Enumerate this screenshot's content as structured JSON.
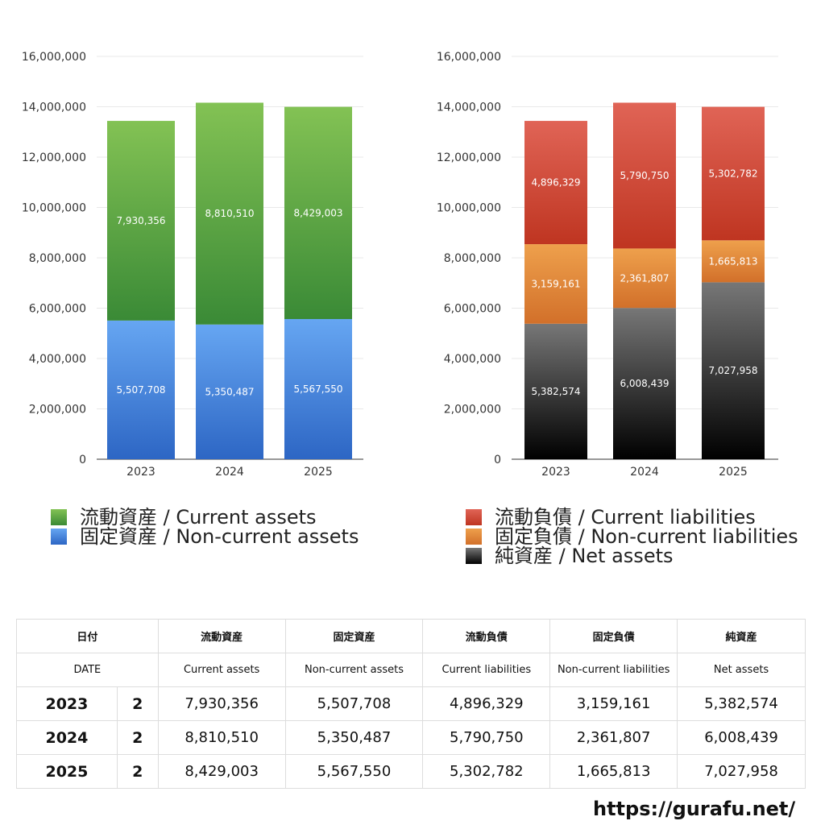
{
  "chart_data": [
    {
      "type": "bar",
      "stacked": true,
      "categories": [
        "2023",
        "2024",
        "2025"
      ],
      "y_ticks": [
        "16,000,000",
        "14,000,000",
        "12,000,000",
        "10,000,000",
        "8,000,000",
        "6,000,000",
        "4,000,000",
        "2,000,000",
        "0"
      ],
      "ylim": [
        0,
        16000000
      ],
      "grid": true,
      "series": [
        {
          "name": "固定資産 / Non-current assets",
          "values": [
            5507708,
            5350487,
            5567550
          ],
          "labels": [
            "5,507,708",
            "5,350,487",
            "5,567,550"
          ],
          "color_top": "#66a6f2",
          "color_bottom": "#2d66c4"
        },
        {
          "name": "流動資産 / Current assets",
          "values": [
            7930356,
            8810510,
            8429003
          ],
          "labels": [
            "7,930,356",
            "8,810,510",
            "8,429,003"
          ],
          "color_top": "#83c254",
          "color_bottom": "#3a8a36"
        }
      ],
      "legend": [
        {
          "label": "流動資産 / Current assets",
          "color": "#4f9e3c"
        },
        {
          "label": "固定資産 / Non-current assets",
          "color": "#3f7fd6"
        }
      ]
    },
    {
      "type": "bar",
      "stacked": true,
      "categories": [
        "2023",
        "2024",
        "2025"
      ],
      "y_ticks": [
        "16,000,000",
        "14,000,000",
        "12,000,000",
        "10,000,000",
        "8,000,000",
        "6,000,000",
        "4,000,000",
        "2,000,000",
        "0"
      ],
      "ylim": [
        0,
        16000000
      ],
      "grid": true,
      "series": [
        {
          "name": "純資産 / Net assets",
          "values": [
            5382574,
            6008439,
            7027958
          ],
          "labels": [
            "5,382,574",
            "6,008,439",
            "7,027,958"
          ],
          "color_top": "#777777",
          "color_bottom": "#000000"
        },
        {
          "name": "固定負債 / Non-current liabilities",
          "values": [
            3159161,
            2361807,
            1665813
          ],
          "labels": [
            "3,159,161",
            "2,361,807",
            "1,665,813"
          ],
          "color_top": "#eea04c",
          "color_bottom": "#d2702a"
        },
        {
          "name": "流動負債 / Current liabilities",
          "values": [
            4896329,
            5790750,
            5302782
          ],
          "labels": [
            "4,896,329",
            "5,790,750",
            "5,302,782"
          ],
          "color_top": "#e06456",
          "color_bottom": "#bf3521"
        }
      ],
      "legend": [
        {
          "label": "流動負債 / Current liabilities",
          "color": "#d9483a"
        },
        {
          "label": "固定負債 / Non-current liabilities",
          "color": "#e58a3a"
        },
        {
          "label": "純資産 / Net assets",
          "color": "#222222"
        }
      ]
    }
  ],
  "table": {
    "header_ja": [
      "日付",
      "流動資産",
      "固定資産",
      "流動負債",
      "固定負債",
      "純資産"
    ],
    "header_en": [
      "DATE",
      "Current assets",
      "Non-current assets",
      "Current liabilities",
      "Non-current liabilities",
      "Net assets"
    ],
    "rows": [
      {
        "year": "2023",
        "count": "2",
        "values": [
          "7,930,356",
          "5,507,708",
          "4,896,329",
          "3,159,161",
          "5,382,574"
        ]
      },
      {
        "year": "2024",
        "count": "2",
        "values": [
          "8,810,510",
          "5,350,487",
          "5,790,750",
          "2,361,807",
          "6,008,439"
        ]
      },
      {
        "year": "2025",
        "count": "2",
        "values": [
          "8,429,003",
          "5,567,550",
          "5,302,782",
          "1,665,813",
          "7,027,958"
        ]
      }
    ]
  },
  "footer": {
    "url": "https://gurafu.net/"
  }
}
